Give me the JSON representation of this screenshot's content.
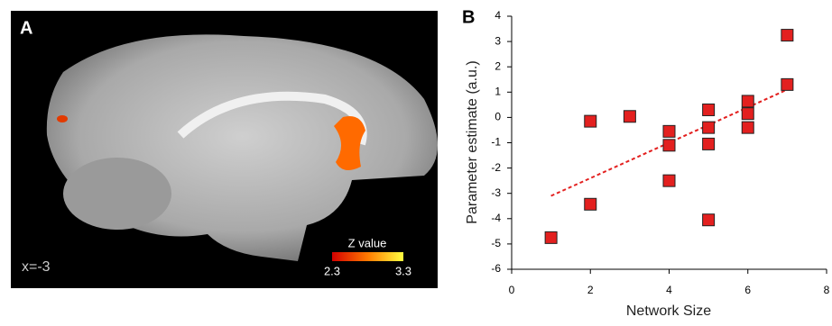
{
  "panel_a": {
    "label": "A",
    "slice": "x=-3",
    "colorbar": {
      "label": "Z value",
      "ticks": [
        2.3,
        3.3
      ]
    }
  },
  "chart_data": {
    "type": "scatter",
    "panel_label": "B",
    "x_label": "Network Size",
    "y_label": "Parameter estimate (a.u.)",
    "xlim": [
      0,
      8
    ],
    "xticks": [
      0,
      2,
      4,
      6,
      8
    ],
    "ylim": [
      -6,
      4
    ],
    "yticks": [
      4,
      3,
      2,
      1,
      0,
      -1,
      -2,
      -3,
      -4,
      -5,
      -6
    ],
    "series": [
      {
        "color": "#e3201f",
        "x": [
          1,
          2,
          2,
          3,
          4,
          4,
          4,
          5,
          5,
          5,
          5,
          6,
          6,
          6,
          7,
          7
        ],
        "values": [
          -4.75,
          -0.15,
          -3.43,
          0.04,
          -0.55,
          -1.1,
          -2.5,
          0.3,
          -0.4,
          -1.05,
          -4.05,
          0.64,
          0.15,
          -0.4,
          3.25,
          1.3
        ]
      }
    ],
    "trendline": {
      "color": "#e3201f",
      "x": [
        1,
        7
      ],
      "y": [
        -3.1,
        1.1
      ]
    }
  }
}
